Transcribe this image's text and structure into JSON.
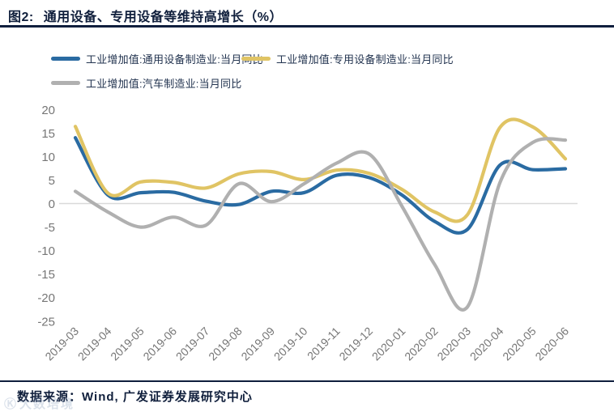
{
  "title": {
    "prefix": "图2:",
    "text": "通用设备、专用设备等维持高增长（%）"
  },
  "source": {
    "text": "数据来源：Wind, 广发证券发展研究中心"
  },
  "watermark": {
    "logo": "Ⓚ",
    "text": "大数培境"
  },
  "colors": {
    "title_navy": "#101f3c",
    "rule_navy": "#0f1e3d",
    "legend_text": "#233450",
    "axis_label_gray": "#767676",
    "zero_line_gray": "#d9d9d9",
    "series_blue": "#2a6ba2",
    "series_yellow": "#e0c464",
    "series_gray": "#b0b0b0",
    "watermark_gray_blue": "#8fa3c0"
  },
  "chart_data": {
    "type": "line",
    "smooth": true,
    "grid": "zero-line-only",
    "legend_position": "top-left",
    "ylim": [
      -25,
      20
    ],
    "yticks": [
      20,
      15,
      10,
      5,
      0,
      -5,
      -10,
      -15,
      -20,
      -25
    ],
    "x": [
      "2019-03",
      "2019-04",
      "2019-05",
      "2019-06",
      "2019-07",
      "2019-08",
      "2019-09",
      "2019-10",
      "2019-11",
      "2019-12",
      "2020-01",
      "2020-02",
      "2020-03",
      "2020-04",
      "2020-05",
      "2020-06"
    ],
    "series": [
      {
        "name": "工业增加值:通用设备制造业:当月同比",
        "color": "#2a6ba2",
        "values": [
          14.0,
          1.8,
          2.3,
          2.4,
          0.5,
          -0.2,
          2.6,
          2.3,
          6.0,
          5.5,
          1.8,
          -3.8,
          -5.5,
          8.2,
          7.2,
          7.4
        ]
      },
      {
        "name": "工业增加值:专用设备制造业:当月同比",
        "color": "#e0c464",
        "values": [
          16.4,
          2.2,
          4.6,
          4.5,
          3.3,
          6.3,
          6.8,
          5.1,
          7.1,
          6.4,
          3.0,
          -1.8,
          -2.4,
          16.2,
          16.3,
          9.5
        ]
      },
      {
        "name": "工业增加值:汽车制造业:当月同比",
        "color": "#b0b0b0",
        "values": [
          2.6,
          -1.8,
          -5.0,
          -2.9,
          -4.6,
          4.2,
          0.4,
          4.2,
          8.6,
          10.5,
          -0.6,
          -13.0,
          -22.0,
          4.5,
          13.0,
          13.5
        ]
      }
    ]
  }
}
